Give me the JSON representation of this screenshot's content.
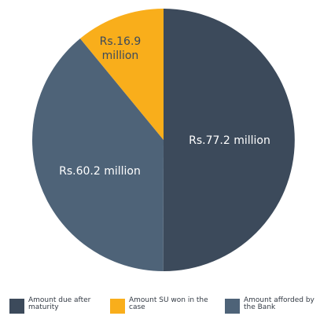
{
  "chart_data": {
    "type": "pie",
    "slices": [
      {
        "key": "due",
        "value": 77.2,
        "label": "Rs.77.2 million",
        "legend": "Amount due after maturity",
        "color": "#3c4a5b"
      },
      {
        "key": "afforded",
        "value": 60.2,
        "label": "Rs.60.2 million",
        "legend": "Amount afforded by the Bank",
        "color": "#4e6378"
      },
      {
        "key": "won",
        "value": 16.9,
        "label": "Rs.16.9 million",
        "legend": "Amount SU won in the case",
        "color": "#f9ae1b"
      }
    ],
    "label_lines": {
      "due": [
        "Rs.77.2 million"
      ],
      "afforded": [
        "Rs.60.2 million"
      ],
      "won": [
        "Rs.16.9",
        "million"
      ]
    },
    "start_angle": "12 o'clock",
    "direction": "clockwise",
    "legend_position": "bottom"
  },
  "legend": {
    "due": [
      "Amount due after",
      "maturity"
    ],
    "won": [
      "Amount SU won in the",
      "case"
    ],
    "afforded": [
      "Amount afforded by",
      "the Bank"
    ]
  },
  "colors": {
    "due": "#3c4a5b",
    "afforded": "#4e6378",
    "won": "#f9ae1b"
  }
}
